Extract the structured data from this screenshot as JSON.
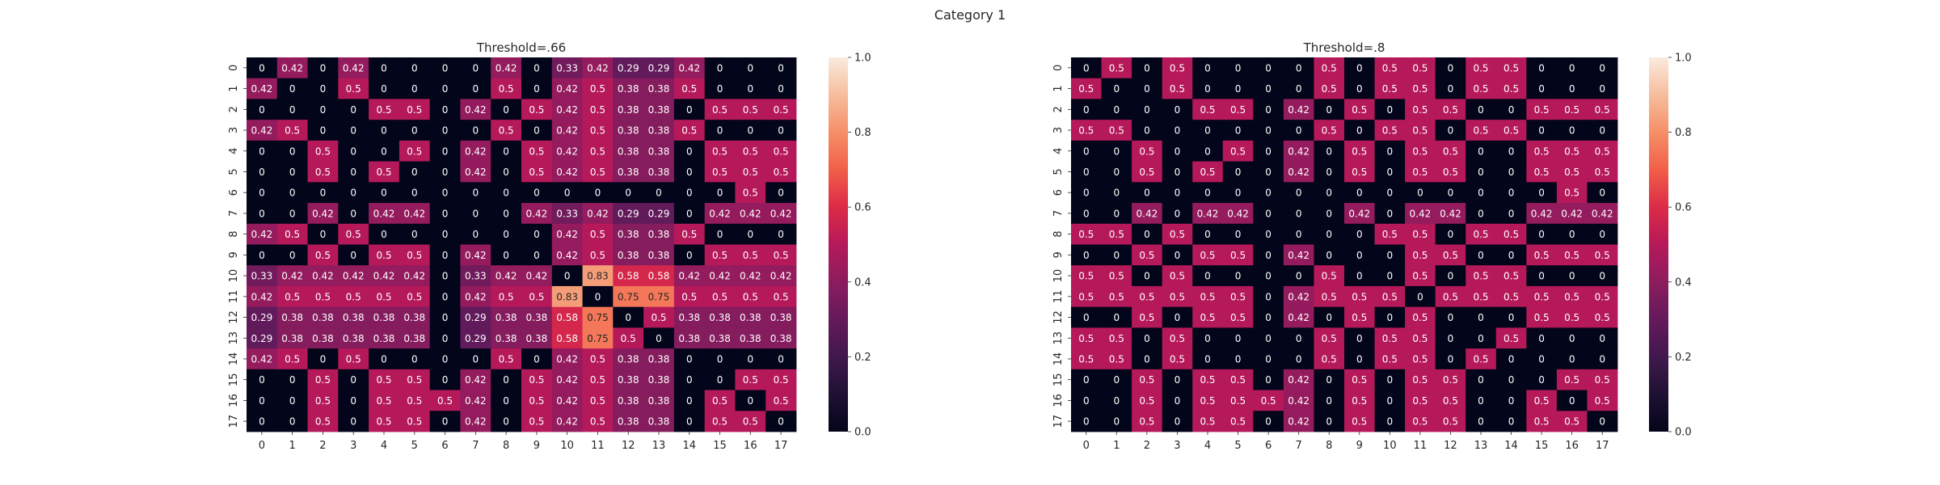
{
  "figure": {
    "suptitle": "Category 1"
  },
  "chart_data": [
    {
      "type": "heatmap",
      "title": "Threshold=.66",
      "x_tick_labels": [
        "0",
        "1",
        "2",
        "3",
        "4",
        "5",
        "6",
        "7",
        "8",
        "9",
        "10",
        "11",
        "12",
        "13",
        "14",
        "15",
        "16",
        "17"
      ],
      "y_tick_labels": [
        "0",
        "1",
        "2",
        "3",
        "4",
        "5",
        "6",
        "7",
        "8",
        "9",
        "10",
        "11",
        "12",
        "13",
        "14",
        "15",
        "16",
        "17"
      ],
      "colorbar": {
        "range": [
          0.0,
          1.0
        ],
        "ticks": [
          "0.0",
          "0.2",
          "0.4",
          "0.6",
          "0.8",
          "1.0"
        ]
      },
      "values": [
        [
          0,
          0.42,
          0,
          0.42,
          0,
          0,
          0,
          0,
          0.42,
          0,
          0.33,
          0.42,
          0.29,
          0.29,
          0.42,
          0,
          0,
          0
        ],
        [
          0.42,
          0,
          0,
          0.5,
          0,
          0,
          0,
          0,
          0.5,
          0,
          0.42,
          0.5,
          0.38,
          0.38,
          0.5,
          0,
          0,
          0
        ],
        [
          0,
          0,
          0,
          0,
          0.5,
          0.5,
          0,
          0.42,
          0,
          0.5,
          0.42,
          0.5,
          0.38,
          0.38,
          0,
          0.5,
          0.5,
          0.5
        ],
        [
          0.42,
          0.5,
          0,
          0,
          0,
          0,
          0,
          0,
          0.5,
          0,
          0.42,
          0.5,
          0.38,
          0.38,
          0.5,
          0,
          0,
          0
        ],
        [
          0,
          0,
          0.5,
          0,
          0,
          0.5,
          0,
          0.42,
          0,
          0.5,
          0.42,
          0.5,
          0.38,
          0.38,
          0,
          0.5,
          0.5,
          0.5
        ],
        [
          0,
          0,
          0.5,
          0,
          0.5,
          0,
          0,
          0.42,
          0,
          0.5,
          0.42,
          0.5,
          0.38,
          0.38,
          0,
          0.5,
          0.5,
          0.5
        ],
        [
          0,
          0,
          0,
          0,
          0,
          0,
          0,
          0,
          0,
          0,
          0,
          0,
          0,
          0,
          0,
          0,
          0.5,
          0
        ],
        [
          0,
          0,
          0.42,
          0,
          0.42,
          0.42,
          0,
          0,
          0,
          0.42,
          0.33,
          0.42,
          0.29,
          0.29,
          0,
          0.42,
          0.42,
          0.42
        ],
        [
          0.42,
          0.5,
          0,
          0.5,
          0,
          0,
          0,
          0,
          0,
          0,
          0.42,
          0.5,
          0.38,
          0.38,
          0.5,
          0,
          0,
          0
        ],
        [
          0,
          0,
          0.5,
          0,
          0.5,
          0.5,
          0,
          0.42,
          0,
          0,
          0.42,
          0.5,
          0.38,
          0.38,
          0,
          0.5,
          0.5,
          0.5
        ],
        [
          0.33,
          0.42,
          0.42,
          0.42,
          0.42,
          0.42,
          0,
          0.33,
          0.42,
          0.42,
          0,
          0.83,
          0.58,
          0.58,
          0.42,
          0.42,
          0.42,
          0.42
        ],
        [
          0.42,
          0.5,
          0.5,
          0.5,
          0.5,
          0.5,
          0,
          0.42,
          0.5,
          0.5,
          0.83,
          0,
          0.75,
          0.75,
          0.5,
          0.5,
          0.5,
          0.5
        ],
        [
          0.29,
          0.38,
          0.38,
          0.38,
          0.38,
          0.38,
          0,
          0.29,
          0.38,
          0.38,
          0.58,
          0.75,
          0,
          0.5,
          0.38,
          0.38,
          0.38,
          0.38
        ],
        [
          0.29,
          0.38,
          0.38,
          0.38,
          0.38,
          0.38,
          0,
          0.29,
          0.38,
          0.38,
          0.58,
          0.75,
          0.5,
          0,
          0.38,
          0.38,
          0.38,
          0.38
        ],
        [
          0.42,
          0.5,
          0,
          0.5,
          0,
          0,
          0,
          0,
          0.5,
          0,
          0.42,
          0.5,
          0.38,
          0.38,
          0,
          0,
          0,
          0
        ],
        [
          0,
          0,
          0.5,
          0,
          0.5,
          0.5,
          0,
          0.42,
          0,
          0.5,
          0.42,
          0.5,
          0.38,
          0.38,
          0,
          0,
          0.5,
          0.5
        ],
        [
          0,
          0,
          0.5,
          0,
          0.5,
          0.5,
          0.5,
          0.42,
          0,
          0.5,
          0.42,
          0.5,
          0.38,
          0.38,
          0,
          0.5,
          0,
          0.5
        ],
        [
          0,
          0,
          0.5,
          0,
          0.5,
          0.5,
          0,
          0.42,
          0,
          0.5,
          0.42,
          0.5,
          0.38,
          0.38,
          0,
          0.5,
          0.5,
          0
        ]
      ]
    },
    {
      "type": "heatmap",
      "title": "Threshold=.8",
      "x_tick_labels": [
        "0",
        "1",
        "2",
        "3",
        "4",
        "5",
        "6",
        "7",
        "8",
        "9",
        "10",
        "11",
        "12",
        "13",
        "14",
        "15",
        "16",
        "17"
      ],
      "y_tick_labels": [
        "0",
        "1",
        "2",
        "3",
        "4",
        "5",
        "6",
        "7",
        "8",
        "9",
        "10",
        "11",
        "12",
        "13",
        "14",
        "15",
        "16",
        "17"
      ],
      "colorbar": {
        "range": [
          0.0,
          1.0
        ],
        "ticks": [
          "0.0",
          "0.2",
          "0.4",
          "0.6",
          "0.8",
          "1.0"
        ]
      },
      "values": [
        [
          0,
          0.5,
          0,
          0.5,
          0,
          0,
          0,
          0,
          0.5,
          0,
          0.5,
          0.5,
          0,
          0.5,
          0.5,
          0,
          0,
          0
        ],
        [
          0.5,
          0,
          0,
          0.5,
          0,
          0,
          0,
          0,
          0.5,
          0,
          0.5,
          0.5,
          0,
          0.5,
          0.5,
          0,
          0,
          0
        ],
        [
          0,
          0,
          0,
          0,
          0.5,
          0.5,
          0,
          0.42,
          0,
          0.5,
          0,
          0.5,
          0.5,
          0,
          0,
          0.5,
          0.5,
          0.5
        ],
        [
          0.5,
          0.5,
          0,
          0,
          0,
          0,
          0,
          0,
          0.5,
          0,
          0.5,
          0.5,
          0,
          0.5,
          0.5,
          0,
          0,
          0
        ],
        [
          0,
          0,
          0.5,
          0,
          0,
          0.5,
          0,
          0.42,
          0,
          0.5,
          0,
          0.5,
          0.5,
          0,
          0,
          0.5,
          0.5,
          0.5
        ],
        [
          0,
          0,
          0.5,
          0,
          0.5,
          0,
          0,
          0.42,
          0,
          0.5,
          0,
          0.5,
          0.5,
          0,
          0,
          0.5,
          0.5,
          0.5
        ],
        [
          0,
          0,
          0,
          0,
          0,
          0,
          0,
          0,
          0,
          0,
          0,
          0,
          0,
          0,
          0,
          0,
          0.5,
          0
        ],
        [
          0,
          0,
          0.42,
          0,
          0.42,
          0.42,
          0,
          0,
          0,
          0.42,
          0,
          0.42,
          0.42,
          0,
          0,
          0.42,
          0.42,
          0.42
        ],
        [
          0.5,
          0.5,
          0,
          0.5,
          0,
          0,
          0,
          0,
          0,
          0,
          0.5,
          0.5,
          0,
          0.5,
          0.5,
          0,
          0,
          0
        ],
        [
          0,
          0,
          0.5,
          0,
          0.5,
          0.5,
          0,
          0.42,
          0,
          0,
          0,
          0.5,
          0.5,
          0,
          0,
          0.5,
          0.5,
          0.5
        ],
        [
          0.5,
          0.5,
          0,
          0.5,
          0,
          0,
          0,
          0,
          0.5,
          0,
          0,
          0.5,
          0,
          0.5,
          0.5,
          0,
          0,
          0
        ],
        [
          0.5,
          0.5,
          0.5,
          0.5,
          0.5,
          0.5,
          0,
          0.42,
          0.5,
          0.5,
          0.5,
          0,
          0.5,
          0.5,
          0.5,
          0.5,
          0.5,
          0.5
        ],
        [
          0,
          0,
          0.5,
          0,
          0.5,
          0.5,
          0,
          0.42,
          0,
          0.5,
          0,
          0.5,
          0,
          0,
          0,
          0.5,
          0.5,
          0.5
        ],
        [
          0.5,
          0.5,
          0,
          0.5,
          0,
          0,
          0,
          0,
          0.5,
          0,
          0.5,
          0.5,
          0,
          0,
          0.5,
          0,
          0,
          0
        ],
        [
          0.5,
          0.5,
          0,
          0.5,
          0,
          0,
          0,
          0,
          0.5,
          0,
          0.5,
          0.5,
          0,
          0.5,
          0,
          0,
          0,
          0
        ],
        [
          0,
          0,
          0.5,
          0,
          0.5,
          0.5,
          0,
          0.42,
          0,
          0.5,
          0,
          0.5,
          0.5,
          0,
          0,
          0,
          0.5,
          0.5
        ],
        [
          0,
          0,
          0.5,
          0,
          0.5,
          0.5,
          0.5,
          0.42,
          0,
          0.5,
          0,
          0.5,
          0.5,
          0,
          0,
          0.5,
          0,
          0.5
        ],
        [
          0,
          0,
          0.5,
          0,
          0.5,
          0.5,
          0,
          0.42,
          0,
          0.5,
          0,
          0.5,
          0.5,
          0,
          0,
          0.5,
          0.5,
          0
        ]
      ]
    }
  ]
}
